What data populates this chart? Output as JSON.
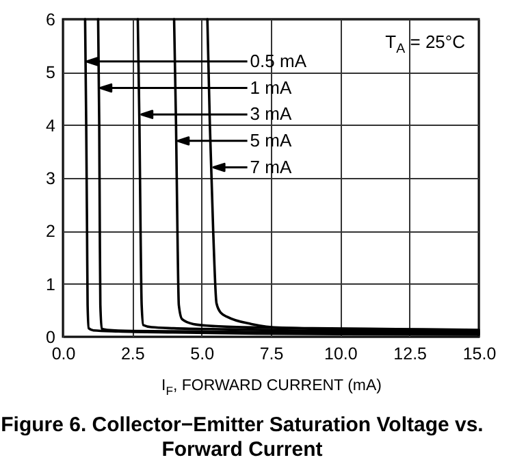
{
  "chart_data": {
    "type": "line",
    "title": "Figure 6. Collector−Emitter Saturation Voltage vs. Forward Current",
    "xlabel": "I$_{F}$, FORWARD CURRENT (mA)",
    "annotations": [
      "T$_{A}$ = 25°C",
      {
        "text": "0.5 mA",
        "x": 0.85,
        "y": 5.2
      },
      {
        "text": "1 mA",
        "x": 1.35,
        "y": 4.7
      },
      {
        "text": "3 mA",
        "x": 2.83,
        "y": 4.2
      },
      {
        "text": "5 mA",
        "x": 4.14,
        "y": 3.7
      },
      {
        "text": "7 mA",
        "x": 5.43,
        "y": 3.2
      }
    ],
    "series": [
      {
        "color": "#000000",
        "x": [
          0.8,
          0.84,
          0.87,
          0.89,
          0.93,
          1.1,
          2,
          4,
          7,
          10,
          15
        ],
        "values": [
          6,
          4,
          2,
          0.6,
          0.16,
          0.12,
          0.1,
          0.08,
          0.06,
          0.05,
          0.04
        ]
      },
      {
        "color": "#000000",
        "x": [
          1.27,
          1.31,
          1.33,
          1.35,
          1.4,
          1.6,
          2.5,
          5,
          8,
          11,
          15
        ],
        "values": [
          6,
          4,
          2,
          0.6,
          0.15,
          0.13,
          0.11,
          0.1,
          0.08,
          0.07,
          0.06
        ]
      },
      {
        "color": "#000000",
        "x": [
          2.7,
          2.76,
          2.8,
          2.84,
          2.9,
          3.2,
          4,
          6,
          9,
          12,
          15
        ],
        "values": [
          6,
          4,
          2,
          0.6,
          0.22,
          0.18,
          0.16,
          0.14,
          0.11,
          0.1,
          0.08
        ]
      },
      {
        "color": "#000000",
        "x": [
          4.01,
          4.08,
          4.13,
          4.18,
          4.3,
          4.7,
          5.5,
          7.5,
          10,
          12.5,
          15
        ],
        "values": [
          6,
          4,
          2,
          0.6,
          0.33,
          0.24,
          0.2,
          0.17,
          0.14,
          0.12,
          0.1
        ]
      },
      {
        "color": "#000000",
        "x": [
          5.21,
          5.3,
          5.42,
          5.54,
          5.7,
          5.95,
          6.8,
          7.9,
          9,
          11,
          13,
          15
        ],
        "values": [
          6,
          4,
          2,
          0.63,
          0.45,
          0.37,
          0.24,
          0.17,
          0.16,
          0.15,
          0.14,
          0.13
        ]
      }
    ],
    "xlim": [
      0,
      15
    ],
    "ylim": [
      0,
      6
    ],
    "xticks": [
      {
        "value": 0,
        "label": "0.0"
      },
      2.5,
      {
        "value": 5,
        "label": "5.0"
      },
      7.5,
      {
        "value": 10,
        "label": "10.0"
      },
      12.5,
      {
        "value": 15,
        "label": "15.0"
      }
    ],
    "yticks": [
      0,
      1,
      2,
      3,
      4,
      5,
      6
    ],
    "grid": true
  }
}
